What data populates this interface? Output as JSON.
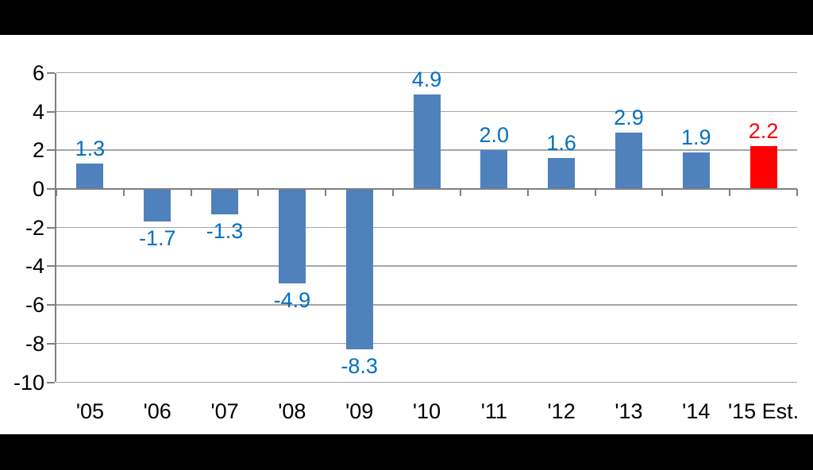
{
  "frame": {
    "background_color": "#FFFFFF",
    "letterbox_color": "#000000"
  },
  "chart_data": {
    "type": "bar",
    "title": "",
    "xlabel": "",
    "ylabel": "",
    "categories": [
      "'05",
      "'06",
      "'07",
      "'08",
      "'09",
      "'10",
      "'11",
      "'12",
      "'13",
      "'14",
      "'15 Est."
    ],
    "values": [
      1.3,
      -1.7,
      -1.3,
      -4.9,
      -8.3,
      4.9,
      2.0,
      1.6,
      2.9,
      1.9,
      2.2
    ],
    "data_labels": [
      "1.3",
      "-1.7",
      "-1.3",
      "-4.9",
      "-8.3",
      "4.9",
      "2.0",
      "1.6",
      "2.9",
      "1.9",
      "2.2"
    ],
    "y_ticks": [
      6,
      4,
      2,
      0,
      -2,
      -4,
      -6,
      -8,
      -10
    ],
    "ylim": [
      -10,
      6
    ],
    "grid": true,
    "legend": "none",
    "highlight_index": 10,
    "bar_color_default": "#4F81BD",
    "bar_color_highlight": "#FF0000",
    "label_color_default": "#0070C0",
    "label_color_highlight": "#FF0000",
    "gridline_color": "#A6A6A6",
    "axis_color": "#808080",
    "tick_label_color": "#000000"
  }
}
